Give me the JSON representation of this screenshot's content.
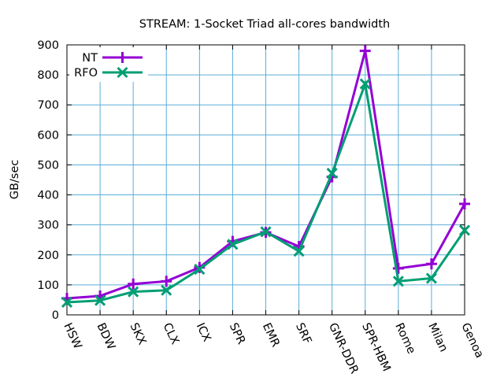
{
  "chart_data": {
    "type": "line",
    "title": "STREAM: 1-Socket Triad all-cores bandwidth",
    "xlabel": "",
    "ylabel": "GB/sec",
    "ylim": [
      0,
      900
    ],
    "yticks": [
      0,
      100,
      200,
      300,
      400,
      500,
      600,
      700,
      800,
      900
    ],
    "grid": true,
    "legend_position": "top-left",
    "categories": [
      "HSW",
      "BDW",
      "SKX",
      "CLX",
      "ICX",
      "SPR",
      "EMR",
      "SRF",
      "GNR-DDR",
      "SPR-HBM",
      "Rome",
      "Milan",
      "Genoa"
    ],
    "series": [
      {
        "name": "NT",
        "color": "#9400d3",
        "marker": "plus",
        "values": [
          55,
          63,
          103,
          112,
          158,
          245,
          275,
          228,
          460,
          880,
          155,
          170,
          370
        ]
      },
      {
        "name": "RFO",
        "color": "#009e73",
        "marker": "cross",
        "values": [
          42,
          48,
          77,
          82,
          152,
          235,
          277,
          212,
          472,
          770,
          112,
          122,
          282
        ]
      }
    ]
  }
}
